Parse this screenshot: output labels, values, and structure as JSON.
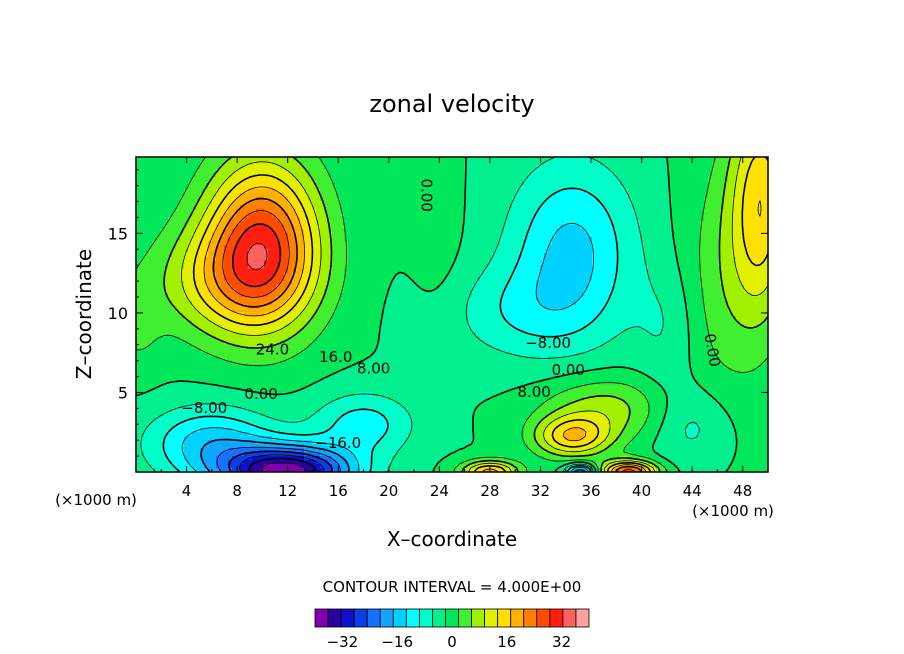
{
  "chart_data": {
    "type": "heatmap",
    "title": "zonal velocity",
    "xlabel": "X–coordinate",
    "ylabel": "Z–coordinate",
    "x_units_left": "(×1000 m)",
    "x_units_right": "(×1000 m)",
    "xlim": [
      0,
      50
    ],
    "ylim": [
      0,
      19.8
    ],
    "x_ticks": [
      4,
      8,
      12,
      16,
      20,
      24,
      28,
      32,
      36,
      40,
      44,
      48
    ],
    "y_ticks": [
      5,
      10,
      15
    ],
    "contour_interval_text": "CONTOUR INTERVAL = 4.000E+00",
    "colorbar": {
      "levels": [
        -40,
        -36,
        -32,
        -28,
        -24,
        -20,
        -16,
        -12,
        -8,
        -4,
        0,
        4,
        8,
        12,
        16,
        20,
        24,
        28,
        32,
        36,
        40
      ],
      "colors": [
        "#8000b0",
        "#2a00a0",
        "#1010c8",
        "#0a3ee6",
        "#1870ff",
        "#10a6ff",
        "#00d2ff",
        "#00ffff",
        "#00ffc8",
        "#00f090",
        "#00e85a",
        "#40f030",
        "#a0f000",
        "#e0f000",
        "#ffe000",
        "#ffb000",
        "#ff8000",
        "#ff4b00",
        "#ff1e10",
        "#ff6060",
        "#ffa0a0"
      ],
      "tick_values": [
        -32,
        -16,
        0,
        16,
        32
      ],
      "tick_labels": [
        "−32",
        "−16",
        "0",
        "16",
        "32"
      ]
    },
    "contour_labels": [
      {
        "text": "24.0",
        "x": 10.8,
        "y": 7.4
      },
      {
        "text": "16.0",
        "x": 15.8,
        "y": 6.9
      },
      {
        "text": "8.00",
        "x": 18.8,
        "y": 6.2
      },
      {
        "text": "0.00",
        "x": 9.9,
        "y": 4.6
      },
      {
        "text": "−8.00",
        "x": 5.4,
        "y": 3.7
      },
      {
        "text": "−16.0",
        "x": 16.0,
        "y": 1.5
      },
      {
        "text": "0.00",
        "x": 22.6,
        "y": 17.4
      },
      {
        "text": "−8.00",
        "x": 32.6,
        "y": 7.8
      },
      {
        "text": "0.00",
        "x": 34.2,
        "y": 6.1
      },
      {
        "text": "8.00",
        "x": 31.5,
        "y": 4.7
      },
      {
        "text": "0.00",
        "x": 45.2,
        "y": 7.6
      }
    ],
    "features": [
      {
        "kind": "max",
        "x": 9.5,
        "y": 14.5,
        "value": 30
      },
      {
        "kind": "min",
        "x": 12.5,
        "y": 0.3,
        "value": -38
      },
      {
        "kind": "min",
        "x": 35,
        "y": 14.2,
        "value": -13
      },
      {
        "kind": "max",
        "x": 39,
        "y": 0.2,
        "value": 30
      },
      {
        "kind": "max",
        "x": 34.5,
        "y": 2.2,
        "value": 18
      },
      {
        "kind": "max",
        "x": 49.5,
        "y": 17.5,
        "value": 18
      }
    ]
  }
}
